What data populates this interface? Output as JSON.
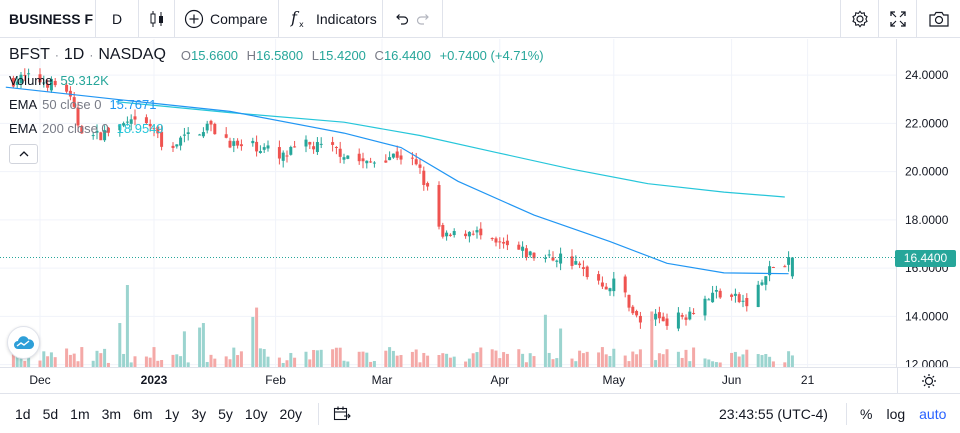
{
  "toolbar": {
    "symbol": "BUSINESS F",
    "interval": "D",
    "compare_label": "Compare",
    "indicators_label": "Indicators",
    "icons": [
      "candles-icon",
      "plus-circle-icon",
      "fx-icon",
      "undo-icon",
      "redo-icon",
      "gear-icon",
      "fullscreen-icon",
      "camera-icon"
    ]
  },
  "legend": {
    "ticker": "BFST",
    "interval": "1D",
    "exchange": "NASDAQ",
    "open_key": "O",
    "open": "15.6600",
    "high_key": "H",
    "high": "16.5800",
    "low_key": "L",
    "low": "15.4200",
    "close_key": "C",
    "close": "16.4400",
    "change": "+0.7400 (+4.71%)"
  },
  "indicators": [
    {
      "name": "Volume",
      "params": "",
      "value": "59.312K",
      "color": "#26a69a"
    },
    {
      "name": "EMA",
      "params": "50 close 0",
      "value": "15.7671",
      "color": "#2196f3"
    },
    {
      "name": "EMA",
      "params": "200 close 0",
      "value": "18.9549",
      "color": "#26c6da"
    }
  ],
  "price_tag": "16.4400",
  "colors": {
    "up": "#26a69a",
    "down": "#ef5350",
    "ema50": "#2196f3",
    "ema200": "#26c6da",
    "vol_up": "#9bd4cf",
    "vol_down": "#f4a9a7",
    "grid": "#f0f3fa"
  },
  "chart_data": {
    "type": "candlestick",
    "y_ticks": [
      "24.0000",
      "22.0000",
      "20.0000",
      "18.0000",
      "16.0000",
      "14.0000",
      "12.0000"
    ],
    "y_tick_values": [
      24,
      22,
      20,
      18,
      16,
      14,
      12
    ],
    "ylim": [
      11.9,
      25.5
    ],
    "x_ticks": [
      {
        "label": "Dec",
        "day": 0,
        "bold": false
      },
      {
        "label": "2023",
        "day": 30,
        "bold": true
      },
      {
        "label": "Feb",
        "day": 62,
        "bold": false
      },
      {
        "label": "Mar",
        "day": 90,
        "bold": false
      },
      {
        "label": "Apr",
        "day": 121,
        "bold": false
      },
      {
        "label": "May",
        "day": 151,
        "bold": false
      },
      {
        "label": "Jun",
        "day": 182,
        "bold": false
      },
      {
        "label": "21",
        "day": 202,
        "bold": false
      }
    ],
    "last_close": 16.44,
    "ema50_points": [
      [
        -9,
        23.5
      ],
      [
        20,
        23.0
      ],
      [
        50,
        22.5
      ],
      [
        80,
        21.6
      ],
      [
        95,
        21.0
      ],
      [
        110,
        19.6
      ],
      [
        130,
        18.2
      ],
      [
        150,
        17.1
      ],
      [
        165,
        16.2
      ],
      [
        180,
        15.8
      ],
      [
        197,
        15.77
      ]
    ],
    "ema200_points": [
      [
        20,
        22.9
      ],
      [
        50,
        22.45
      ],
      [
        80,
        22.05
      ],
      [
        100,
        21.5
      ],
      [
        120,
        20.8
      ],
      [
        140,
        20.1
      ],
      [
        160,
        19.5
      ],
      [
        180,
        19.15
      ],
      [
        196,
        18.95
      ]
    ],
    "price_path": [
      [
        -9,
        23.7
      ],
      [
        -4,
        23.9
      ],
      [
        2,
        23.7
      ],
      [
        7,
        23.4
      ],
      [
        10,
        22.0
      ],
      [
        13,
        21.4
      ],
      [
        17,
        21.6
      ],
      [
        21,
        21.9
      ],
      [
        26,
        22.0
      ],
      [
        30,
        21.8
      ],
      [
        32,
        21.0
      ],
      [
        36,
        21.2
      ],
      [
        40,
        21.6
      ],
      [
        44,
        21.9
      ],
      [
        48,
        21.5
      ],
      [
        52,
        21.0
      ],
      [
        56,
        21.1
      ],
      [
        60,
        20.9
      ],
      [
        63,
        20.5
      ],
      [
        66,
        20.8
      ],
      [
        70,
        21.1
      ],
      [
        74,
        21.0
      ],
      [
        78,
        20.9
      ],
      [
        82,
        20.6
      ],
      [
        86,
        20.3
      ],
      [
        90,
        20.6
      ],
      [
        94,
        20.7
      ],
      [
        98,
        20.4
      ],
      [
        100,
        20.0
      ],
      [
        102,
        19.2
      ],
      [
        104,
        18.2
      ],
      [
        106,
        17.2
      ],
      [
        110,
        17.4
      ],
      [
        114,
        17.6
      ],
      [
        118,
        17.0
      ],
      [
        122,
        16.9
      ],
      [
        126,
        16.7
      ],
      [
        130,
        16.5
      ],
      [
        134,
        16.4
      ],
      [
        138,
        16.5
      ],
      [
        142,
        16.0
      ],
      [
        146,
        15.6
      ],
      [
        150,
        15.2
      ],
      [
        152,
        15.6
      ],
      [
        154,
        14.9
      ],
      [
        156,
        14.2
      ],
      [
        158,
        13.7
      ],
      [
        162,
        14.0
      ],
      [
        166,
        13.8
      ],
      [
        170,
        14.1
      ],
      [
        174,
        14.6
      ],
      [
        178,
        15.0
      ],
      [
        182,
        14.8
      ],
      [
        186,
        14.5
      ],
      [
        190,
        15.4
      ],
      [
        192,
        15.9
      ],
      [
        194,
        16.3
      ],
      [
        196,
        16.0
      ],
      [
        198,
        16.44
      ]
    ]
  }
}
